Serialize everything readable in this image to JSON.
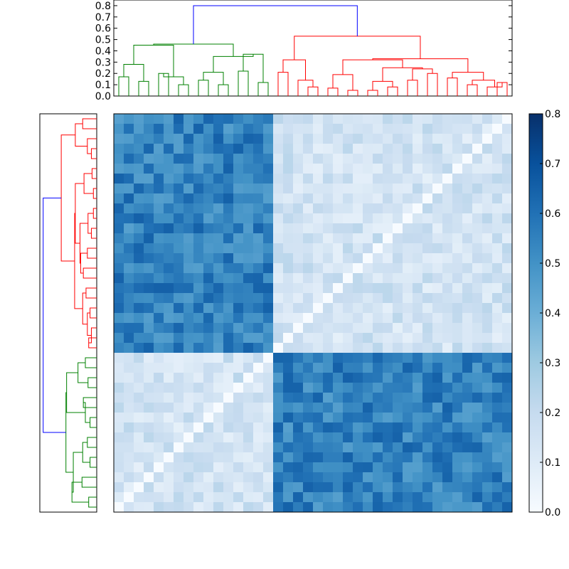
{
  "chart_data": [
    {
      "type": "dendrogram",
      "role": "top-dendrogram",
      "yaxis_ticks": [
        "0.0",
        "0.1",
        "0.2",
        "0.3",
        "0.4",
        "0.5",
        "0.6",
        "0.7",
        "0.8"
      ],
      "ylim": [
        0,
        0.85
      ],
      "leaf_count": 40,
      "colors": {
        "root": "#0000ff",
        "cluster_a": "#008000",
        "cluster_b": "#ff0000"
      },
      "root_height": 0.8,
      "cluster_heights": {
        "cluster_a": 0.45,
        "cluster_b": 0.53
      }
    },
    {
      "type": "dendrogram",
      "role": "left-dendrogram",
      "leaf_count": 40,
      "colors": {
        "root": "#0000ff",
        "cluster_a": "#008000",
        "cluster_b": "#ff0000"
      },
      "note_orientation": "leaves on right, tree grows left"
    },
    {
      "type": "heatmap",
      "role": "distance-matrix",
      "rows": 40,
      "cols": 40,
      "value_range": [
        0.0,
        0.8
      ],
      "colormap": "Blues",
      "clusters": {
        "cluster_a_size": 16,
        "cluster_b_size": 24
      },
      "typical_values": {
        "diagonal": 0.0,
        "within_cluster_a": 0.15,
        "within_cluster_b": 0.15,
        "between_clusters": 0.55
      }
    },
    {
      "type": "colorbar",
      "ticks": [
        "0.0",
        "0.1",
        "0.2",
        "0.3",
        "0.4",
        "0.5",
        "0.6",
        "0.7",
        "0.8"
      ],
      "range": [
        0.0,
        0.8
      ]
    }
  ]
}
